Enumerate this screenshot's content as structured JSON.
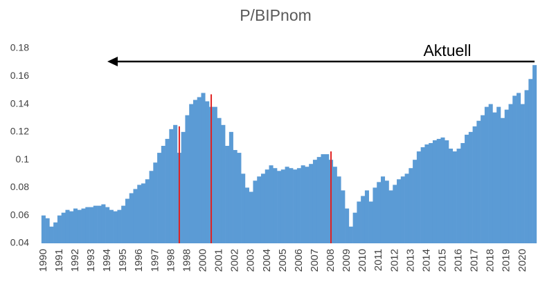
{
  "chart_data": {
    "type": "bar",
    "title": "P/BIPnom",
    "annotation": "Aktuell",
    "categories": [
      "1990",
      null,
      null,
      null,
      "1991",
      null,
      null,
      null,
      "1992",
      null,
      null,
      null,
      "1993",
      null,
      null,
      null,
      "1994",
      null,
      null,
      null,
      "1995",
      null,
      null,
      null,
      "1996",
      null,
      null,
      null,
      "1997",
      null,
      null,
      null,
      "1998",
      null,
      null,
      null,
      "1998",
      null,
      null,
      null,
      "2000",
      null,
      null,
      null,
      "2001",
      null,
      null,
      null,
      "2002",
      null,
      null,
      null,
      "2003",
      null,
      null,
      null,
      "2004",
      null,
      null,
      null,
      "2005",
      null,
      null,
      null,
      "2006",
      null,
      null,
      null,
      "2007",
      null,
      null,
      null,
      "2008",
      null,
      null,
      null,
      "2009",
      null,
      null,
      null,
      "2010",
      null,
      null,
      null,
      "2011",
      null,
      null,
      null,
      "2012",
      null,
      null,
      null,
      "2013",
      null,
      null,
      null,
      "2014",
      null,
      null,
      null,
      "2015",
      null,
      null,
      null,
      "2016",
      null,
      null,
      null,
      "2017",
      null,
      null,
      null,
      "2018",
      null,
      null,
      null,
      "2019",
      null,
      null,
      null,
      "2020",
      null,
      null,
      null
    ],
    "series": [
      {
        "color": "#5b9bd5",
        "values": [
          0.06,
          0.058,
          0.052,
          0.055,
          0.06,
          0.062,
          0.064,
          0.063,
          0.065,
          0.064,
          0.065,
          0.066,
          0.066,
          0.067,
          0.067,
          0.068,
          0.066,
          0.064,
          0.063,
          0.064,
          0.067,
          0.072,
          0.076,
          0.079,
          0.082,
          0.083,
          0.086,
          0.092,
          0.098,
          0.105,
          0.11,
          0.115,
          0.122,
          0.125,
          0.105,
          0.12,
          0.132,
          0.14,
          0.143,
          0.145,
          0.148,
          0.142,
          0.138,
          0.138,
          0.13,
          0.125,
          0.11,
          0.12,
          0.107,
          0.105,
          0.09,
          0.08,
          0.077,
          0.085,
          0.088,
          0.09,
          0.093,
          0.096,
          0.094,
          0.092,
          0.093,
          0.095,
          0.094,
          0.093,
          0.094,
          0.096,
          0.095,
          0.097,
          0.1,
          0.102,
          0.104,
          0.104,
          0.1,
          0.095,
          0.088,
          0.078,
          0.065,
          0.052,
          0.062,
          0.07,
          0.074,
          0.078,
          0.07,
          0.08,
          0.084,
          0.088,
          0.085,
          0.078,
          0.082,
          0.086,
          0.088,
          0.09,
          0.094,
          0.1,
          0.106,
          0.109,
          0.111,
          0.112,
          0.114,
          0.115,
          0.116,
          0.114,
          0.108,
          0.106,
          0.108,
          0.112,
          0.118,
          0.12,
          0.124,
          0.128,
          0.132,
          0.138,
          0.14,
          0.134,
          0.138,
          0.13,
          0.136,
          0.14,
          0.146,
          0.148,
          0.14,
          0.15,
          0.158,
          0.168
        ]
      },
      {
        "color": "#e02020",
        "values": [
          null,
          null,
          null,
          null,
          null,
          null,
          null,
          null,
          null,
          null,
          null,
          null,
          null,
          null,
          null,
          null,
          null,
          null,
          null,
          null,
          null,
          null,
          null,
          null,
          null,
          null,
          null,
          null,
          null,
          null,
          null,
          null,
          null,
          null,
          0.124,
          null,
          null,
          null,
          null,
          null,
          null,
          null,
          0.147,
          null,
          null,
          null,
          null,
          null,
          null,
          null,
          null,
          null,
          null,
          null,
          null,
          null,
          null,
          null,
          null,
          null,
          null,
          null,
          null,
          null,
          null,
          null,
          null,
          null,
          null,
          null,
          null,
          null,
          0.106,
          null,
          null,
          null,
          null,
          null,
          null,
          null,
          null,
          null,
          null,
          null,
          null,
          null,
          null,
          null,
          null,
          null,
          null,
          null,
          null,
          null,
          null,
          null,
          null,
          null,
          null,
          null,
          null,
          null,
          null,
          null,
          null,
          null,
          null,
          null,
          null,
          null,
          null,
          null,
          null,
          null,
          null,
          null,
          null,
          null,
          null,
          null,
          null,
          null,
          null,
          null
        ]
      }
    ],
    "ylim": [
      0.04,
      0.18
    ],
    "yticks": [
      0.04,
      0.06,
      0.08,
      0.1,
      0.12,
      0.14,
      0.16,
      0.18
    ],
    "grid": false
  }
}
